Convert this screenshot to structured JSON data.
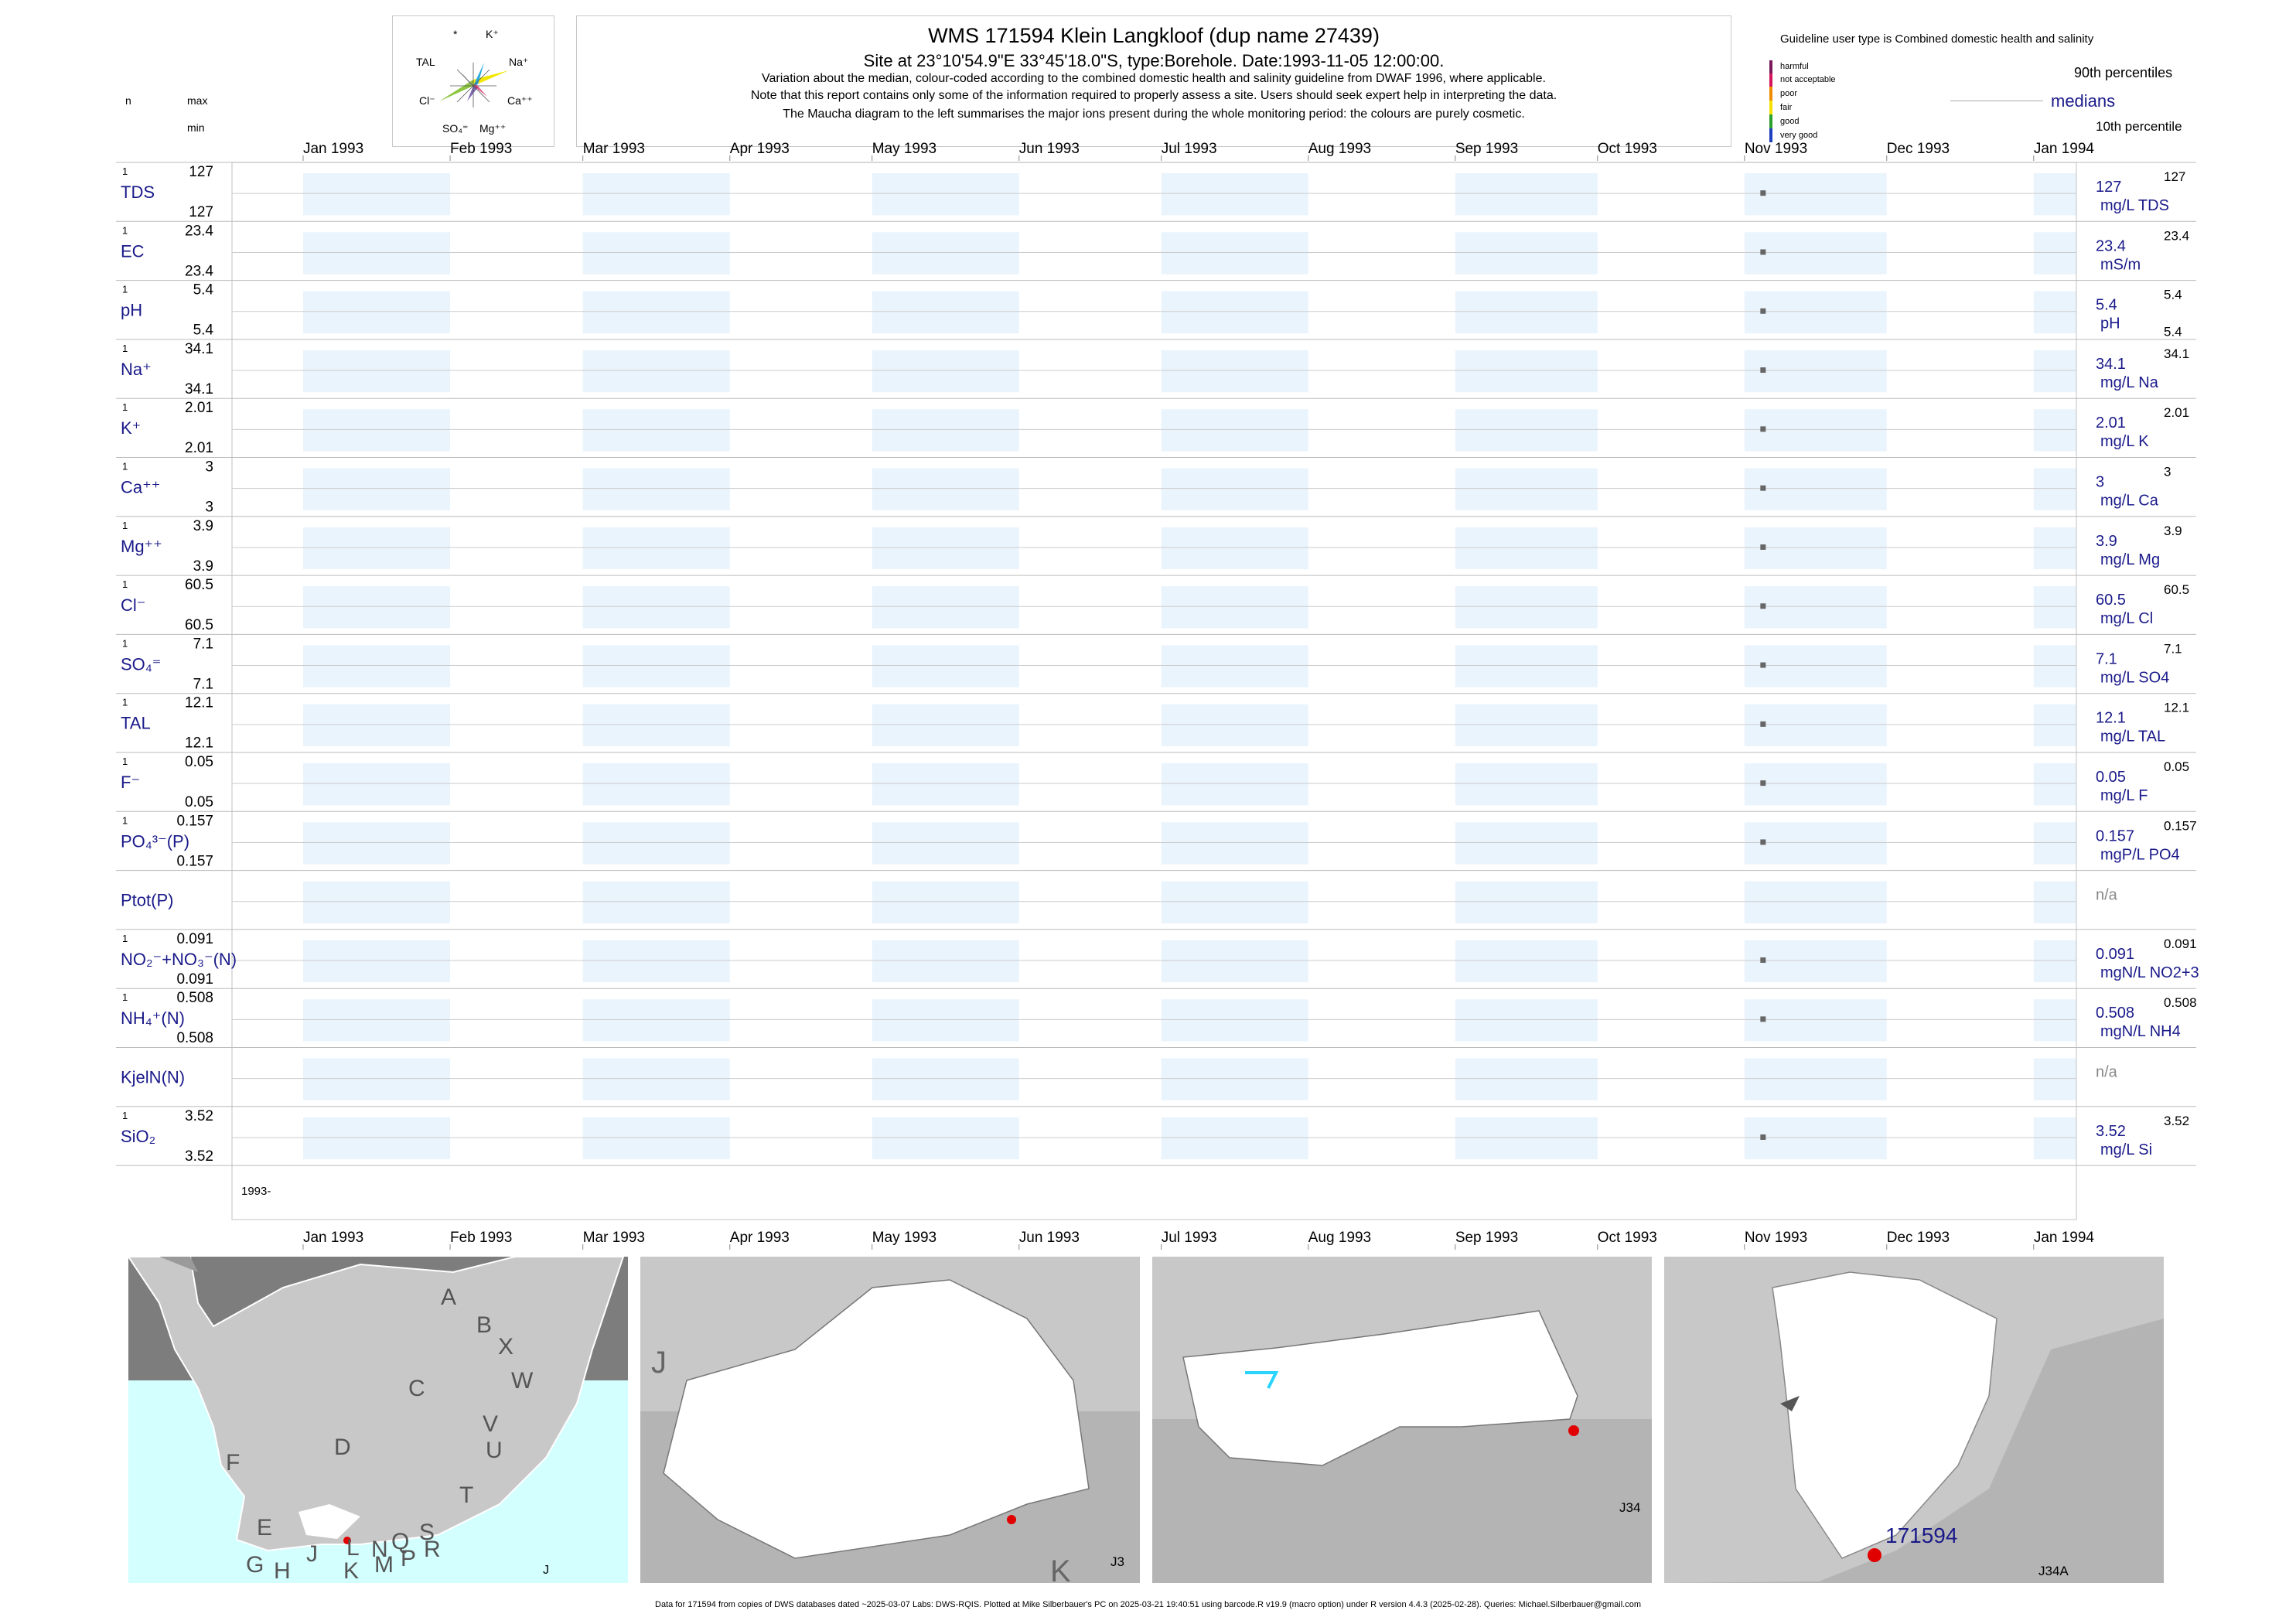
{
  "header": {
    "title": "WMS 171594  Klein Langkloof (dup name 27439)",
    "subtitle": "Site at 23°10'54.9\"E 33°45'18.0\"S, type:Borehole. Date:1993-11-05 12:00:00.",
    "notes": [
      "Variation about the median,  colour-coded according to the combined domestic health and salinity guideline from DWAF 1996, where applicable.",
      "Note that this report contains only some of the information required to properly assess a site. Users should seek expert help in interpreting the data.",
      "The Maucha diagram to the left summarises the major ions present during the whole monitoring period: the colours are purely cosmetic."
    ],
    "n_label": "n",
    "max_label": "max",
    "min_label": "min"
  },
  "maucha": {
    "labels": [
      "K⁺",
      "Na⁺",
      "Ca⁺⁺",
      "Mg⁺⁺",
      "SO₄⁼",
      "Cl⁻",
      "TAL",
      "*"
    ]
  },
  "legend": {
    "guideline_title": "Guideline user type is Combined domestic health and salinity",
    "classes": [
      {
        "label": "harmful",
        "color": "#7a1a5a"
      },
      {
        "label": "not acceptable",
        "color": "#d4145a"
      },
      {
        "label": "poor",
        "color": "#f08c00"
      },
      {
        "label": "fair",
        "color": "#f5e000"
      },
      {
        "label": "good",
        "color": "#2ca02c"
      },
      {
        "label": "very good",
        "color": "#1f3fbf"
      }
    ],
    "p90": "90th percentiles",
    "medians": "medians",
    "p10": "10th percentile"
  },
  "chart_data": {
    "type": "scatter",
    "x_ticks": [
      "Jan 1993",
      "Feb 1993",
      "Mar 1993",
      "Apr 1993",
      "May 1993",
      "Jun 1993",
      "Jul 1993",
      "Aug 1993",
      "Sep 1993",
      "Oct 1993",
      "Nov 1993",
      "Dec 1993",
      "Jan 1994"
    ],
    "sample_date": "1993-11-05",
    "year_label": "1993-",
    "series": [
      {
        "name": "TDS",
        "n": "1",
        "max": "127",
        "min": "127",
        "median": "127",
        "p90": "127",
        "unit": "mg/L TDS",
        "has_data": true
      },
      {
        "name": "EC",
        "n": "1",
        "max": "23.4",
        "min": "23.4",
        "median": "23.4",
        "p90": "23.4",
        "unit": "mS/m",
        "has_data": true
      },
      {
        "name": "pH",
        "n": "1",
        "max": "5.4",
        "min": "5.4",
        "median": "5.4",
        "p90": "5.4",
        "p10": "5.4",
        "unit": "pH",
        "has_data": true
      },
      {
        "name": "Na⁺",
        "n": "1",
        "max": "34.1",
        "min": "34.1",
        "median": "34.1",
        "p90": "34.1",
        "unit": "mg/L Na",
        "has_data": true
      },
      {
        "name": "K⁺",
        "n": "1",
        "max": "2.01",
        "min": "2.01",
        "median": "2.01",
        "p90": "2.01",
        "unit": "mg/L K",
        "has_data": true
      },
      {
        "name": "Ca⁺⁺",
        "n": "1",
        "max": "3",
        "min": "3",
        "median": "3",
        "p90": "3",
        "unit": "mg/L Ca",
        "has_data": true
      },
      {
        "name": "Mg⁺⁺",
        "n": "1",
        "max": "3.9",
        "min": "3.9",
        "median": "3.9",
        "p90": "3.9",
        "unit": "mg/L Mg",
        "has_data": true
      },
      {
        "name": "Cl⁻",
        "n": "1",
        "max": "60.5",
        "min": "60.5",
        "median": "60.5",
        "p90": "60.5",
        "unit": "mg/L Cl",
        "has_data": true
      },
      {
        "name": "SO₄⁼",
        "n": "1",
        "max": "7.1",
        "min": "7.1",
        "median": "7.1",
        "p90": "7.1",
        "unit": "mg/L SO4",
        "has_data": true
      },
      {
        "name": "TAL",
        "n": "1",
        "max": "12.1",
        "min": "12.1",
        "median": "12.1",
        "p90": "12.1",
        "unit": "mg/L TAL",
        "has_data": true
      },
      {
        "name": "F⁻",
        "n": "1",
        "max": "0.05",
        "min": "0.05",
        "median": "0.05",
        "p90": "0.05",
        "unit": "mg/L F",
        "has_data": true
      },
      {
        "name": "PO₄³⁻(P)",
        "n": "1",
        "max": "0.157",
        "min": "0.157",
        "median": "0.157",
        "p90": "0.157",
        "unit": "mgP/L PO4",
        "has_data": true
      },
      {
        "name": "Ptot(P)",
        "n": "",
        "max": "",
        "min": "",
        "median": "n/a",
        "p90": "",
        "unit": "",
        "has_data": false
      },
      {
        "name": "NO₂⁻+NO₃⁻(N)",
        "n": "1",
        "max": "0.091",
        "min": "0.091",
        "median": "0.091",
        "p90": "0.091",
        "unit": "mgN/L NO2+3",
        "has_data": true
      },
      {
        "name": "NH₄⁺(N)",
        "n": "1",
        "max": "0.508",
        "min": "0.508",
        "median": "0.508",
        "p90": "0.508",
        "unit": "mgN/L NH4",
        "has_data": true
      },
      {
        "name": "KjelN(N)",
        "n": "",
        "max": "",
        "min": "",
        "median": "n/a",
        "p90": "",
        "unit": "",
        "has_data": false
      },
      {
        "name": "SiO₂",
        "n": "1",
        "max": "3.52",
        "min": "3.52",
        "median": "3.52",
        "p90": "3.52",
        "unit": "mg/L Si",
        "has_data": true
      }
    ]
  },
  "maps": {
    "overview_letters": [
      "A",
      "B",
      "X",
      "W",
      "C",
      "V",
      "U",
      "D",
      "T",
      "F",
      "E",
      "S",
      "R",
      "L",
      "N",
      "Q",
      "P",
      "M",
      "G",
      "H",
      "J",
      "K"
    ],
    "panel1_label": "J",
    "panel2_label": "J3",
    "panel2_big_letter": "J",
    "panel2_corner_letter": "K",
    "panel3_label": "J34",
    "panel4_label": "J34A",
    "site_label": "171594"
  },
  "footer": {
    "text": "Data for 171594 from copies of DWS databases dated ~2025-03-07 Labs: DWS-RQIS. Plotted at Mike Silberbauer's PC on 2025-03-21 19:40:51 using barcode.R v19.9 (macro option) under R version 4.4.3 (2025-02-28). Queries: Michael.Silberbauer@gmail.com"
  }
}
